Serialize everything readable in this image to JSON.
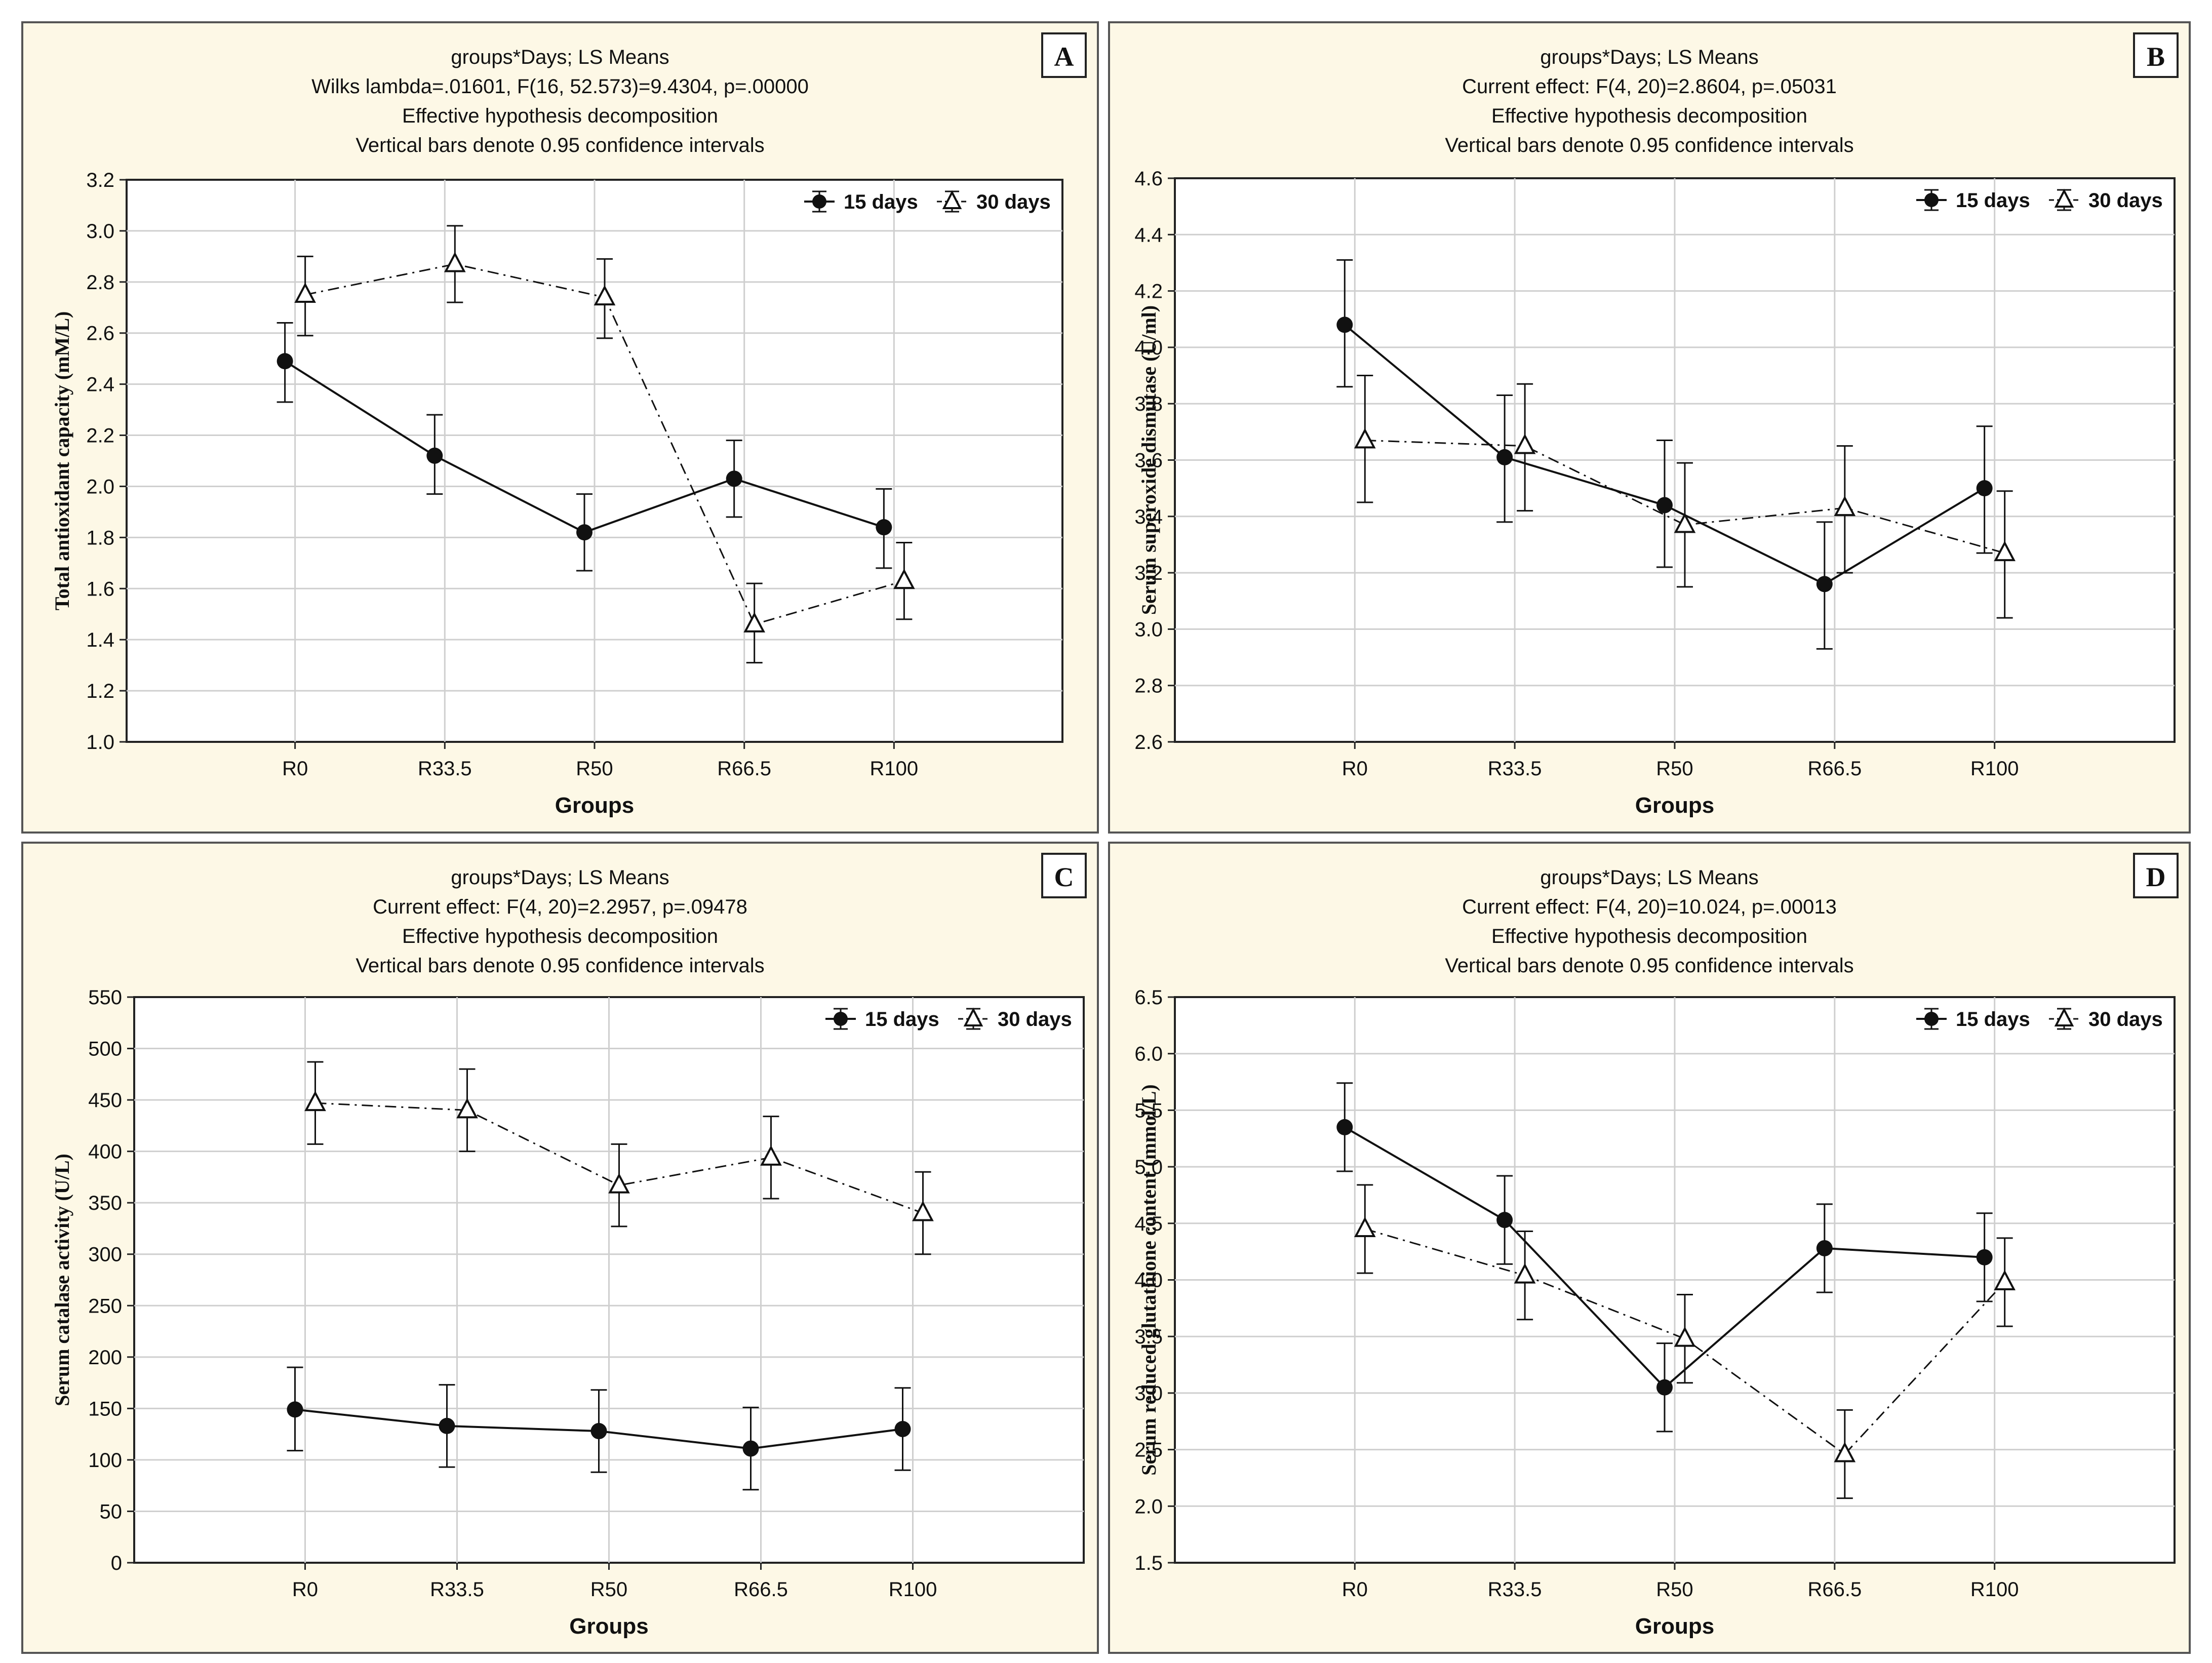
{
  "chart_data": [
    {
      "panel": "A",
      "type": "line",
      "title_lines": [
        "groups*Days; LS Means",
        "Wilks lambda=.01601, F(16, 52.573)=9.4304, p=.00000",
        "Effective hypothesis decomposition",
        "Vertical bars denote 0.95 confidence intervals"
      ],
      "xlabel": "Groups",
      "ylabel": "Total antioxidant capacity (mM/L)",
      "categories": [
        "R0",
        "R33.5",
        "R50",
        "R66.5",
        "R100"
      ],
      "ylim": [
        1.0,
        3.2
      ],
      "yticks": [
        1.0,
        1.2,
        1.4,
        1.6,
        1.8,
        2.0,
        2.2,
        2.4,
        2.6,
        2.8,
        3.0,
        3.2
      ],
      "ytick_labels": [
        "1.0",
        "1.2",
        "1.4",
        "1.6",
        "1.8",
        "2.0",
        "2.2",
        "2.4",
        "2.6",
        "2.8",
        "3.0",
        "3.2"
      ],
      "legend_position": "top-right",
      "grid": true,
      "series": [
        {
          "name": "15 days",
          "marker": "filled-circle",
          "line": "solid",
          "values": [
            2.49,
            2.12,
            1.82,
            2.03,
            1.84
          ],
          "ci_low": [
            2.33,
            1.97,
            1.67,
            1.88,
            1.68
          ],
          "ci_high": [
            2.64,
            2.28,
            1.97,
            2.18,
            1.99
          ]
        },
        {
          "name": "30 days",
          "marker": "open-triangle",
          "line": "dash-dot",
          "values": [
            2.75,
            2.87,
            2.74,
            1.46,
            1.63
          ],
          "ci_low": [
            2.59,
            2.72,
            2.58,
            1.31,
            1.48
          ],
          "ci_high": [
            2.9,
            3.02,
            2.89,
            1.62,
            1.78
          ]
        }
      ]
    },
    {
      "panel": "B",
      "type": "line",
      "title_lines": [
        "groups*Days; LS Means",
        "Current effect: F(4, 20)=2.8604, p=.05031",
        "Effective hypothesis decomposition",
        "Vertical bars denote 0.95 confidence intervals"
      ],
      "xlabel": "Groups",
      "ylabel": "Serum superoxide dismutase (U/ml)",
      "categories": [
        "R0",
        "R33.5",
        "R50",
        "R66.5",
        "R100"
      ],
      "ylim": [
        2.6,
        4.6
      ],
      "yticks": [
        2.6,
        2.8,
        3.0,
        3.2,
        3.4,
        3.6,
        3.8,
        4.0,
        4.2,
        4.4,
        4.6
      ],
      "ytick_labels": [
        "2.6",
        "2.8",
        "3.0",
        "3.2",
        "3.4",
        "3.6",
        "3.8",
        "4.0",
        "4.2",
        "4.4",
        "4.6"
      ],
      "legend_position": "top-right",
      "grid": true,
      "series": [
        {
          "name": "15 days",
          "marker": "filled-circle",
          "line": "solid",
          "values": [
            4.08,
            3.61,
            3.44,
            3.16,
            3.5
          ],
          "ci_low": [
            3.86,
            3.38,
            3.22,
            2.93,
            3.27
          ],
          "ci_high": [
            4.31,
            3.83,
            3.67,
            3.38,
            3.72
          ]
        },
        {
          "name": "30 days",
          "marker": "open-triangle",
          "line": "dash-dot",
          "values": [
            3.67,
            3.65,
            3.37,
            3.43,
            3.27
          ],
          "ci_low": [
            3.45,
            3.42,
            3.15,
            3.2,
            3.04
          ],
          "ci_high": [
            3.9,
            3.87,
            3.59,
            3.65,
            3.49
          ]
        }
      ]
    },
    {
      "panel": "C",
      "type": "line",
      "title_lines": [
        "groups*Days; LS Means",
        "Current effect: F(4, 20)=2.2957, p=.09478",
        "Effective hypothesis decomposition",
        "Vertical bars denote 0.95 confidence intervals"
      ],
      "xlabel": "Groups",
      "ylabel": "Serum catalase activity (U/L)",
      "categories": [
        "R0",
        "R33.5",
        "R50",
        "R66.5",
        "R100"
      ],
      "ylim": [
        0,
        550
      ],
      "yticks": [
        0,
        50,
        100,
        150,
        200,
        250,
        300,
        350,
        400,
        450,
        500,
        550
      ],
      "ytick_labels": [
        "0",
        "50",
        "100",
        "150",
        "200",
        "250",
        "300",
        "350",
        "400",
        "450",
        "500",
        "550"
      ],
      "legend_position": "top-right",
      "grid": true,
      "series": [
        {
          "name": "15 days",
          "marker": "filled-circle",
          "line": "solid",
          "values": [
            149,
            133,
            128,
            111,
            130
          ],
          "ci_low": [
            109,
            93,
            88,
            71,
            90
          ],
          "ci_high": [
            190,
            173,
            168,
            151,
            170
          ]
        },
        {
          "name": "30 days",
          "marker": "open-triangle",
          "line": "dash-dot",
          "values": [
            447,
            440,
            367,
            394,
            340
          ],
          "ci_low": [
            407,
            400,
            327,
            354,
            300
          ],
          "ci_high": [
            487,
            480,
            407,
            434,
            380
          ]
        }
      ]
    },
    {
      "panel": "D",
      "type": "line",
      "title_lines": [
        "groups*Days; LS Means",
        "Current effect: F(4, 20)=10.024, p=.00013",
        "Effective hypothesis decomposition",
        "Vertical bars denote 0.95 confidence intervals"
      ],
      "xlabel": "Groups",
      "ylabel": "Serum reduced glutathione content (mmol/L)",
      "categories": [
        "R0",
        "R33.5",
        "R50",
        "R66.5",
        "R100"
      ],
      "ylim": [
        1.5,
        6.5
      ],
      "yticks": [
        1.5,
        2.0,
        2.5,
        3.0,
        3.5,
        4.0,
        4.5,
        5.0,
        5.5,
        6.0,
        6.5
      ],
      "ytick_labels": [
        "1.5",
        "2.0",
        "2.5",
        "3.0",
        "3.5",
        "4.0",
        "4.5",
        "5.0",
        "5.5",
        "6.0",
        "6.5"
      ],
      "legend_position": "top-right",
      "grid": true,
      "series": [
        {
          "name": "15 days",
          "marker": "filled-circle",
          "line": "solid",
          "values": [
            5.35,
            4.53,
            3.05,
            4.28,
            4.2
          ],
          "ci_low": [
            4.96,
            4.14,
            2.66,
            3.89,
            3.81
          ],
          "ci_high": [
            5.74,
            4.92,
            3.44,
            4.67,
            4.59
          ]
        },
        {
          "name": "30 days",
          "marker": "open-triangle",
          "line": "dash-dot",
          "values": [
            4.45,
            4.04,
            3.48,
            2.46,
            3.98
          ],
          "ci_low": [
            4.06,
            3.65,
            3.09,
            2.07,
            3.59
          ],
          "ci_high": [
            4.84,
            4.43,
            3.87,
            2.85,
            4.37
          ]
        }
      ]
    }
  ]
}
